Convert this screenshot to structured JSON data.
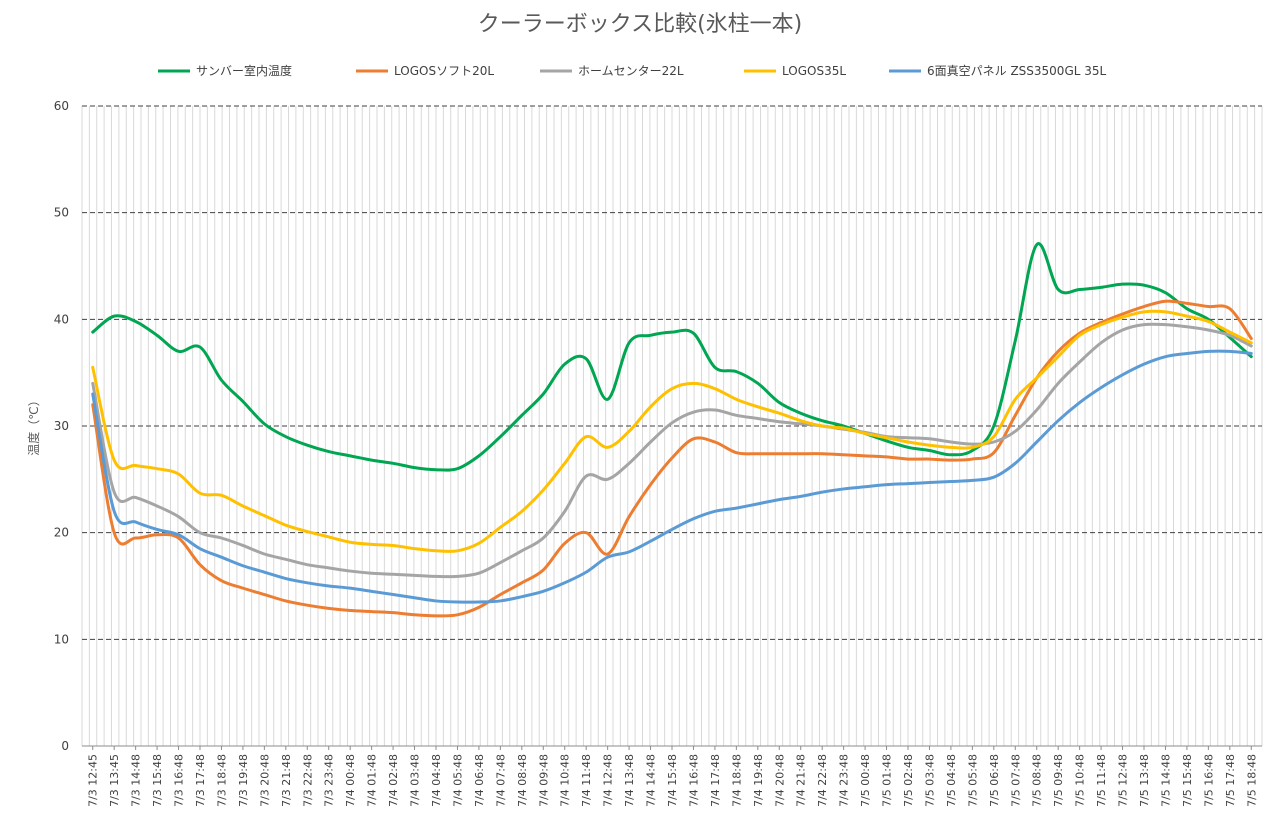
{
  "chart_data": {
    "type": "line",
    "title": "クーラーボックス比較(氷柱一本)",
    "xlabel": "",
    "ylabel": "温度（℃）",
    "ylim": [
      0,
      60
    ],
    "yticks": [
      0,
      10,
      20,
      30,
      40,
      50,
      60
    ],
    "grid": true,
    "legend_position": "top",
    "x": [
      "7/3 12:45",
      "7/3 13:45",
      "7/3 14:48",
      "7/3 15:48",
      "7/3 16:48",
      "7/3 17:48",
      "7/3 18:48",
      "7/3 19:48",
      "7/3 20:48",
      "7/3 21:48",
      "7/3 22:48",
      "7/3 23:48",
      "7/4 00:48",
      "7/4 01:48",
      "7/4 02:48",
      "7/4 03:48",
      "7/4 04:48",
      "7/4 05:48",
      "7/4 06:48",
      "7/4 07:48",
      "7/4 08:48",
      "7/4 09:48",
      "7/4 10:48",
      "7/4 11:48",
      "7/4 12:48",
      "7/4 13:48",
      "7/4 14:48",
      "7/4 15:48",
      "7/4 16:48",
      "7/4 17:48",
      "7/4 18:48",
      "7/4 19:48",
      "7/4 20:48",
      "7/4 21:48",
      "7/4 22:48",
      "7/4 23:48",
      "7/5 00:48",
      "7/5 01:48",
      "7/5 02:48",
      "7/5 03:48",
      "7/5 04:48",
      "7/5 05:48",
      "7/5 06:48",
      "7/5 07:48",
      "7/5 08:48",
      "7/5 09:48",
      "7/5 10:48",
      "7/5 11:48",
      "7/5 12:48",
      "7/5 13:48",
      "7/5 14:48",
      "7/5 15:48",
      "7/5 16:48",
      "7/5 17:48",
      "7/5 18:48"
    ],
    "series": [
      {
        "name": "サンバー室内温度",
        "color": "#00A651",
        "values": [
          38.8,
          40.3,
          39.8,
          38.5,
          37.0,
          37.4,
          34.3,
          32.3,
          30.2,
          29.0,
          28.2,
          27.6,
          27.2,
          26.8,
          26.5,
          26.1,
          25.9,
          26.0,
          27.2,
          29.0,
          31.0,
          33.0,
          35.8,
          36.3,
          32.5,
          37.8,
          38.5,
          38.8,
          38.7,
          35.5,
          35.1,
          34.0,
          32.2,
          31.2,
          30.5,
          30.0,
          29.3,
          28.6,
          28.0,
          27.7,
          27.3,
          27.7,
          30.0,
          38.0,
          47.0,
          42.8,
          42.8,
          43.0,
          43.3,
          43.2,
          42.5,
          41.0,
          40.0,
          38.3,
          36.5
        ]
      },
      {
        "name": "LOGOSソフト20L",
        "color": "#ED7D31",
        "values": [
          32.0,
          20.0,
          19.5,
          19.8,
          19.5,
          17.0,
          15.5,
          14.8,
          14.2,
          13.6,
          13.2,
          12.9,
          12.7,
          12.6,
          12.5,
          12.3,
          12.2,
          12.3,
          13.0,
          14.2,
          15.3,
          16.5,
          19.0,
          20.0,
          18.0,
          21.5,
          24.5,
          27.0,
          28.8,
          28.5,
          27.5,
          27.4,
          27.4,
          27.4,
          27.4,
          27.3,
          27.2,
          27.1,
          26.9,
          26.9,
          26.8,
          26.9,
          27.5,
          31.0,
          34.5,
          37.0,
          38.7,
          39.7,
          40.5,
          41.2,
          41.7,
          41.5,
          41.2,
          41.0,
          38.2
        ]
      },
      {
        "name": "ホームセンター22L",
        "color": "#A5A5A5",
        "values": [
          34.0,
          23.8,
          23.3,
          22.5,
          21.5,
          20.0,
          19.5,
          18.8,
          18.0,
          17.5,
          17.0,
          16.7,
          16.4,
          16.2,
          16.1,
          16.0,
          15.9,
          15.9,
          16.2,
          17.2,
          18.3,
          19.5,
          22.0,
          25.3,
          25.0,
          26.5,
          28.5,
          30.3,
          31.3,
          31.5,
          31.0,
          30.7,
          30.4,
          30.2,
          30.0,
          29.7,
          29.4,
          29.0,
          28.9,
          28.8,
          28.5,
          28.3,
          28.5,
          29.5,
          31.5,
          34.0,
          36.0,
          37.8,
          39.0,
          39.5,
          39.5,
          39.3,
          39.0,
          38.5,
          37.5
        ]
      },
      {
        "name": "LOGOS35L",
        "color": "#FFC000",
        "values": [
          35.5,
          26.8,
          26.3,
          26.0,
          25.5,
          23.7,
          23.5,
          22.5,
          21.6,
          20.7,
          20.1,
          19.6,
          19.1,
          18.9,
          18.8,
          18.5,
          18.3,
          18.3,
          19.0,
          20.5,
          22.0,
          24.0,
          26.5,
          29.0,
          28.0,
          29.5,
          31.8,
          33.5,
          34.0,
          33.5,
          32.5,
          31.8,
          31.2,
          30.5,
          30.0,
          29.8,
          29.3,
          28.9,
          28.5,
          28.2,
          28.0,
          28.0,
          29.0,
          32.5,
          34.5,
          36.5,
          38.5,
          39.5,
          40.2,
          40.7,
          40.7,
          40.3,
          39.8,
          38.8,
          37.8
        ]
      },
      {
        "name": "6面真空パネル ZSS3500GL 35L",
        "color": "#5B9BD5",
        "values": [
          33.0,
          22.0,
          21.0,
          20.3,
          19.8,
          18.5,
          17.7,
          16.9,
          16.3,
          15.7,
          15.3,
          15.0,
          14.8,
          14.5,
          14.2,
          13.9,
          13.6,
          13.5,
          13.5,
          13.6,
          14.0,
          14.5,
          15.3,
          16.3,
          17.7,
          18.2,
          19.2,
          20.3,
          21.3,
          22.0,
          22.3,
          22.7,
          23.1,
          23.4,
          23.8,
          24.1,
          24.3,
          24.5,
          24.6,
          24.7,
          24.8,
          24.9,
          25.2,
          26.5,
          28.5,
          30.5,
          32.2,
          33.6,
          34.8,
          35.8,
          36.5,
          36.8,
          37.0,
          37.0,
          36.8
        ]
      }
    ]
  }
}
